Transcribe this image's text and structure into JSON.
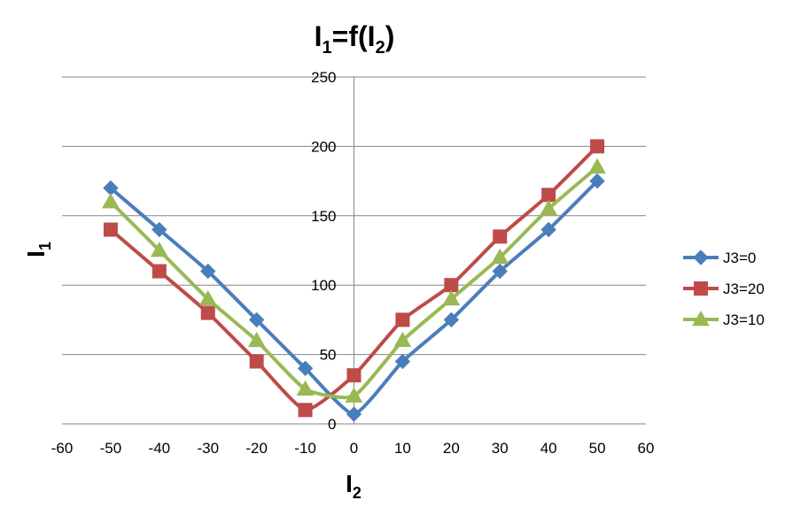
{
  "chart_data": {
    "type": "line",
    "title": {
      "main": "I",
      "sub1": "1",
      "mid": "=f(I",
      "sub2": "2",
      "end": ")"
    },
    "xlabel": {
      "main": "I",
      "sub": "2"
    },
    "ylabel": {
      "main": "I",
      "sub": "1"
    },
    "xlim": [
      -60,
      60
    ],
    "ylim": [
      0,
      250
    ],
    "xticks": [
      "-60",
      "-50",
      "-40",
      "-30",
      "-20",
      "-10",
      "0",
      "10",
      "20",
      "30",
      "40",
      "50",
      "60"
    ],
    "yticks": [
      "0",
      "50",
      "100",
      "150",
      "200",
      "250"
    ],
    "grid": true,
    "smooth": true,
    "legend_position": "right",
    "x": [
      -50,
      -40,
      -30,
      -20,
      -10,
      0,
      10,
      20,
      30,
      40,
      50
    ],
    "series": [
      {
        "name": "J3=0",
        "color": "#4a7ebb",
        "marker": "diamond",
        "values": [
          170,
          140,
          110,
          75,
          40,
          7,
          45,
          75,
          110,
          140,
          175
        ]
      },
      {
        "name": "J3=20",
        "color": "#be4b48",
        "marker": "square",
        "values": [
          140,
          110,
          80,
          45,
          10,
          35,
          75,
          100,
          135,
          165,
          200
        ]
      },
      {
        "name": "J3=10",
        "color": "#98b954",
        "marker": "triangle",
        "values": [
          160,
          125,
          90,
          60,
          25,
          20,
          60,
          90,
          120,
          155,
          185
        ]
      }
    ]
  }
}
